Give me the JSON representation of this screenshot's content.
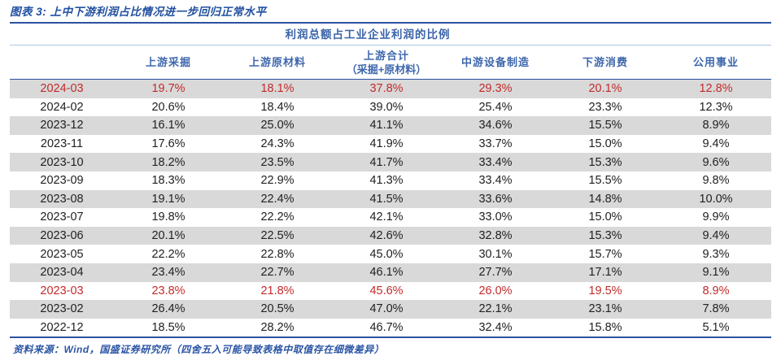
{
  "figure": {
    "title": "图表 3: 上中下游利润占比情况进一步回归正常水平",
    "source_note": "资料来源：Wind，国盛证券研究所（四舍五入可能导致表格中取值存在细微差异）"
  },
  "chart_data": {
    "type": "table",
    "title": "利润总额占工业企业利润的比例",
    "columns": [
      [
        "上游采掘"
      ],
      [
        "上游原材料"
      ],
      [
        "上游合计",
        "（采掘+原材料）"
      ],
      [
        "中游设备制造"
      ],
      [
        "下游消费"
      ],
      [
        "公用事业"
      ]
    ],
    "rows": [
      {
        "date": "2024-03",
        "values": [
          "19.7%",
          "18.1%",
          "37.8%",
          "29.3%",
          "20.1%",
          "12.8%"
        ],
        "highlight": true
      },
      {
        "date": "2024-02",
        "values": [
          "20.6%",
          "18.4%",
          "39.0%",
          "25.4%",
          "23.3%",
          "12.3%"
        ],
        "highlight": false
      },
      {
        "date": "2023-12",
        "values": [
          "16.1%",
          "25.0%",
          "41.1%",
          "34.6%",
          "15.5%",
          "8.9%"
        ],
        "highlight": false
      },
      {
        "date": "2023-11",
        "values": [
          "17.6%",
          "24.3%",
          "41.9%",
          "33.7%",
          "15.0%",
          "9.4%"
        ],
        "highlight": false
      },
      {
        "date": "2023-10",
        "values": [
          "18.2%",
          "23.5%",
          "41.7%",
          "33.4%",
          "15.3%",
          "9.6%"
        ],
        "highlight": false
      },
      {
        "date": "2023-09",
        "values": [
          "18.3%",
          "22.9%",
          "41.3%",
          "33.4%",
          "15.5%",
          "9.8%"
        ],
        "highlight": false
      },
      {
        "date": "2023-08",
        "values": [
          "19.1%",
          "22.4%",
          "41.5%",
          "33.6%",
          "14.8%",
          "10.0%"
        ],
        "highlight": false
      },
      {
        "date": "2023-07",
        "values": [
          "19.8%",
          "22.2%",
          "42.1%",
          "33.0%",
          "15.0%",
          "9.9%"
        ],
        "highlight": false
      },
      {
        "date": "2023-06",
        "values": [
          "20.1%",
          "22.5%",
          "42.6%",
          "32.8%",
          "15.3%",
          "9.4%"
        ],
        "highlight": false
      },
      {
        "date": "2023-05",
        "values": [
          "22.2%",
          "22.8%",
          "45.0%",
          "30.1%",
          "15.7%",
          "9.3%"
        ],
        "highlight": false
      },
      {
        "date": "2023-04",
        "values": [
          "23.4%",
          "22.7%",
          "46.1%",
          "27.7%",
          "17.1%",
          "9.1%"
        ],
        "highlight": false
      },
      {
        "date": "2023-03",
        "values": [
          "23.8%",
          "21.8%",
          "45.6%",
          "26.0%",
          "19.5%",
          "8.9%"
        ],
        "highlight": true
      },
      {
        "date": "2023-02",
        "values": [
          "26.4%",
          "20.5%",
          "47.0%",
          "22.1%",
          "23.1%",
          "7.8%"
        ],
        "highlight": false
      },
      {
        "date": "2022-12",
        "values": [
          "18.5%",
          "28.2%",
          "46.7%",
          "32.4%",
          "15.8%",
          "5.1%"
        ],
        "highlight": false
      }
    ]
  },
  "colors": {
    "accent_blue": "#2B51A0",
    "header_text_blue": "#3E67AC",
    "highlight_red": "#C42A2A",
    "stripe_gray": "#D9D9D9",
    "body_text": "#212121"
  }
}
